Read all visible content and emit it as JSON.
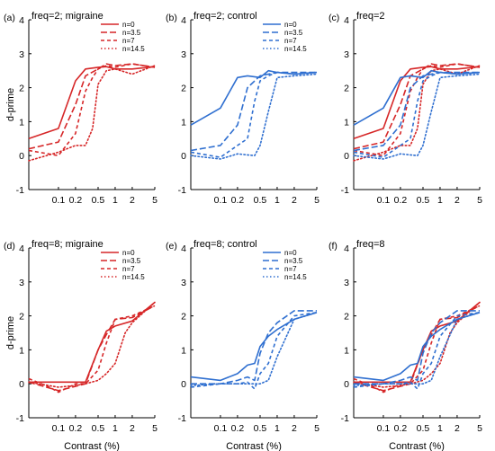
{
  "figure": {
    "ylabel": "d-prime",
    "xlabel": "Contrast (%)",
    "colors": {
      "migraine": "#d62728",
      "control": "#2f6fd0",
      "axis": "#000000"
    }
  },
  "chart_data": [
    {
      "type": "line",
      "panel": "(a)",
      "title": "freq=2; migraine",
      "ylabel": "d-prime",
      "xlabel": "",
      "xscale": "log",
      "xlim": [
        0.03,
        5
      ],
      "ylim": [
        -1,
        4
      ],
      "xticks": [
        "0.1",
        "0.2",
        "0.5",
        "1",
        "2",
        "5"
      ],
      "yticks": [
        "-1",
        "0",
        "1",
        "2",
        "3",
        "4"
      ],
      "legend": "top-right",
      "show_xlabel": false,
      "series": [
        {
          "name": "n=0",
          "group": "migraine",
          "dash": "solid",
          "x": [
            0.03,
            0.1,
            0.2,
            0.3,
            0.5,
            0.7,
            1,
            2,
            5
          ],
          "y": [
            0.5,
            0.8,
            2.2,
            2.55,
            2.6,
            2.62,
            2.55,
            2.55,
            2.62
          ]
        },
        {
          "name": "n=3.5",
          "group": "migraine",
          "dash": "dash",
          "x": [
            0.03,
            0.1,
            0.2,
            0.3,
            0.5,
            0.7,
            1,
            2,
            5
          ],
          "y": [
            0.2,
            0.4,
            1.5,
            2.35,
            2.55,
            2.7,
            2.65,
            2.7,
            2.6
          ]
        },
        {
          "name": "n=7",
          "group": "migraine",
          "dash": "dash2",
          "x": [
            0.03,
            0.1,
            0.2,
            0.3,
            0.4,
            0.5,
            0.7,
            1,
            2,
            5
          ],
          "y": [
            0.15,
            0.0,
            0.65,
            1.9,
            2.3,
            2.55,
            2.65,
            2.6,
            2.7,
            2.6
          ]
        },
        {
          "name": "n=14.5",
          "group": "migraine",
          "dash": "dot",
          "x": [
            0.03,
            0.1,
            0.2,
            0.3,
            0.4,
            0.5,
            0.7,
            1,
            2,
            5
          ],
          "y": [
            -0.15,
            0.1,
            0.3,
            0.3,
            0.8,
            2.1,
            2.5,
            2.55,
            2.4,
            2.65
          ]
        }
      ]
    },
    {
      "type": "line",
      "panel": "(b)",
      "title": "freq=2; control",
      "ylabel": "",
      "xlabel": "",
      "xscale": "log",
      "xlim": [
        0.03,
        5
      ],
      "ylim": [
        -1,
        4
      ],
      "xticks": [
        "0.1",
        "0.2",
        "0.5",
        "1",
        "2",
        "5"
      ],
      "yticks": [
        "-1",
        "0",
        "1",
        "2",
        "3",
        "4"
      ],
      "legend": "top-right",
      "show_xlabel": false,
      "series": [
        {
          "name": "n=0",
          "group": "control",
          "dash": "solid",
          "x": [
            0.03,
            0.1,
            0.2,
            0.3,
            0.5,
            0.7,
            1,
            2,
            5
          ],
          "y": [
            0.9,
            1.4,
            2.3,
            2.35,
            2.3,
            2.5,
            2.45,
            2.4,
            2.45
          ]
        },
        {
          "name": "n=3.5",
          "group": "control",
          "dash": "dash",
          "x": [
            0.03,
            0.1,
            0.2,
            0.3,
            0.5,
            0.7,
            1,
            2,
            5
          ],
          "y": [
            0.15,
            0.3,
            0.9,
            2.0,
            2.35,
            2.4,
            2.45,
            2.45,
            2.45
          ]
        },
        {
          "name": "n=7",
          "group": "control",
          "dash": "dash2",
          "x": [
            0.03,
            0.1,
            0.2,
            0.3,
            0.4,
            0.5,
            0.7,
            1,
            2,
            5
          ],
          "y": [
            0.1,
            -0.05,
            0.3,
            0.5,
            1.6,
            2.2,
            2.35,
            2.45,
            2.4,
            2.45
          ]
        },
        {
          "name": "n=14.5",
          "group": "control",
          "dash": "dot",
          "x": [
            0.03,
            0.1,
            0.2,
            0.4,
            0.5,
            0.7,
            1,
            2,
            5
          ],
          "y": [
            0.0,
            -0.1,
            0.05,
            0.0,
            0.3,
            1.3,
            2.3,
            2.35,
            2.4
          ]
        }
      ]
    },
    {
      "type": "line",
      "panel": "(c)",
      "title": "freq=2",
      "ylabel": "",
      "xlabel": "",
      "xscale": "log",
      "xlim": [
        0.03,
        5
      ],
      "ylim": [
        -1,
        4
      ],
      "xticks": [
        "0.1",
        "0.2",
        "0.5",
        "1",
        "2",
        "5"
      ],
      "yticks": [
        "-1",
        "0",
        "1",
        "2",
        "3",
        "4"
      ],
      "legend": "none",
      "show_xlabel": false,
      "overlay_of": [
        0,
        1
      ]
    },
    {
      "type": "line",
      "panel": "(d)",
      "title": "freq=8; migraine",
      "ylabel": "d-prime",
      "xlabel": "Contrast (%)",
      "xscale": "log",
      "xlim": [
        0.03,
        5
      ],
      "ylim": [
        -1,
        4
      ],
      "xticks": [
        "0.1",
        "0.2",
        "0.5",
        "1",
        "2",
        "5"
      ],
      "yticks": [
        "-1",
        "0",
        "1",
        "2",
        "3",
        "4"
      ],
      "legend": "top-right",
      "show_xlabel": true,
      "series": [
        {
          "name": "n=0",
          "group": "migraine",
          "dash": "solid",
          "x": [
            0.03,
            0.1,
            0.3,
            0.5,
            0.7,
            1,
            2,
            5
          ],
          "y": [
            0.05,
            0.05,
            0.05,
            1.0,
            1.55,
            1.7,
            1.85,
            2.4
          ]
        },
        {
          "name": "n=3.5",
          "group": "migraine",
          "dash": "dash",
          "x": [
            0.03,
            0.1,
            0.3,
            0.5,
            0.7,
            1,
            2,
            5
          ],
          "y": [
            0.05,
            -0.2,
            0.0,
            1.0,
            1.45,
            1.9,
            1.95,
            2.3
          ]
        },
        {
          "name": "n=7",
          "group": "migraine",
          "dash": "dash2",
          "x": [
            0.03,
            0.07,
            0.1,
            0.2,
            0.3,
            0.5,
            0.7,
            1,
            2,
            5
          ],
          "y": [
            0.15,
            -0.1,
            -0.25,
            0.0,
            0.0,
            0.4,
            1.2,
            1.9,
            2.0,
            2.3
          ]
        },
        {
          "name": "n=14.5",
          "group": "migraine",
          "dash": "dot",
          "x": [
            0.03,
            0.1,
            0.2,
            0.3,
            0.5,
            0.7,
            1,
            1.5,
            2,
            5
          ],
          "y": [
            0.05,
            -0.1,
            -0.05,
            0.0,
            0.1,
            0.3,
            0.6,
            1.5,
            1.8,
            2.4
          ]
        }
      ]
    },
    {
      "type": "line",
      "panel": "(e)",
      "title": "freq=8; control",
      "ylabel": "",
      "xlabel": "Contrast (%)",
      "xscale": "log",
      "xlim": [
        0.03,
        5
      ],
      "ylim": [
        -1,
        4
      ],
      "xticks": [
        "0.1",
        "0.2",
        "0.5",
        "1",
        "2",
        "5"
      ],
      "yticks": [
        "-1",
        "0",
        "1",
        "2",
        "3",
        "4"
      ],
      "legend": "top-right",
      "show_xlabel": true,
      "series": [
        {
          "name": "n=0",
          "group": "control",
          "dash": "solid",
          "x": [
            0.03,
            0.1,
            0.2,
            0.3,
            0.4,
            0.5,
            0.7,
            1,
            2,
            5
          ],
          "y": [
            0.2,
            0.1,
            0.3,
            0.55,
            0.6,
            1.1,
            1.4,
            1.6,
            1.9,
            2.1
          ]
        },
        {
          "name": "n=3.5",
          "group": "control",
          "dash": "dash",
          "x": [
            0.03,
            0.1,
            0.2,
            0.3,
            0.4,
            0.5,
            0.7,
            1,
            2,
            5
          ],
          "y": [
            0.0,
            0.0,
            0.1,
            0.2,
            0.1,
            0.9,
            1.5,
            1.8,
            2.15,
            2.15
          ]
        },
        {
          "name": "n=7",
          "group": "control",
          "dash": "dash2",
          "x": [
            0.03,
            0.1,
            0.2,
            0.3,
            0.4,
            0.5,
            0.7,
            1,
            2,
            5
          ],
          "y": [
            -0.1,
            0.0,
            0.0,
            0.05,
            -0.15,
            0.3,
            0.6,
            1.4,
            2.0,
            2.1
          ]
        },
        {
          "name": "n=14.5",
          "group": "control",
          "dash": "dot",
          "x": [
            0.03,
            0.1,
            0.2,
            0.5,
            0.7,
            1,
            2,
            5
          ],
          "y": [
            -0.05,
            0.0,
            0.0,
            0.0,
            0.1,
            0.8,
            1.9,
            2.1
          ]
        }
      ]
    },
    {
      "type": "line",
      "panel": "(f)",
      "title": "freq=8",
      "ylabel": "",
      "xlabel": "Contrast (%)",
      "xscale": "log",
      "xlim": [
        0.03,
        5
      ],
      "ylim": [
        -1,
        4
      ],
      "xticks": [
        "0.1",
        "0.2",
        "0.5",
        "1",
        "2",
        "5"
      ],
      "yticks": [
        "-1",
        "0",
        "1",
        "2",
        "3",
        "4"
      ],
      "legend": "none",
      "show_xlabel": true,
      "overlay_of": [
        3,
        4
      ]
    }
  ]
}
